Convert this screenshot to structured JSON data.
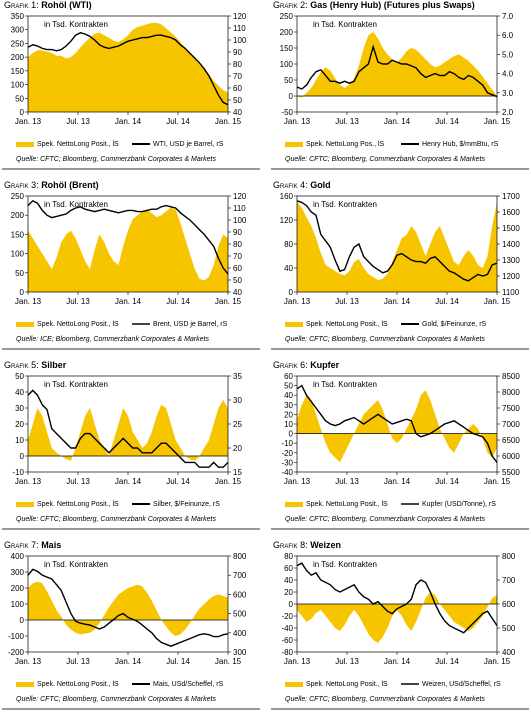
{
  "chart_data": [
    {
      "type": "area",
      "prefix": "Grafik 1: ",
      "name": "Rohöl (WTI)",
      "annotation": "in Tsd. Kontrakten",
      "x_labels": [
        "Jan. 13",
        "Jul. 13",
        "Jan. 14",
        "Jul. 14",
        "Jan. 15"
      ],
      "ylim_left": [
        0,
        350
      ],
      "yticks_left": [
        0,
        50,
        100,
        150,
        200,
        250,
        300,
        350
      ],
      "ylim_right": [
        40,
        120
      ],
      "yticks_right": [
        40,
        50,
        60,
        70,
        80,
        90,
        100,
        110,
        120
      ],
      "series": [
        {
          "name": "Spek. NettoLong Posit., lS",
          "axis": "left",
          "kind": "area",
          "values": [
            200,
            215,
            225,
            225,
            220,
            215,
            205,
            205,
            195,
            200,
            215,
            235,
            255,
            270,
            285,
            290,
            280,
            270,
            260,
            255,
            265,
            280,
            300,
            310,
            315,
            320,
            325,
            325,
            320,
            305,
            290,
            275,
            255,
            235,
            215,
            195,
            175,
            155,
            135,
            115,
            95,
            80,
            70
          ]
        },
        {
          "name": "WTI, USD je Barrel, rS",
          "axis": "right",
          "kind": "line",
          "values": [
            94,
            96,
            95,
            93,
            92,
            92,
            91,
            92,
            95,
            99,
            104,
            106,
            105,
            103,
            100,
            96,
            94,
            93,
            94,
            95,
            97,
            99,
            100,
            101,
            102,
            102,
            103,
            104,
            104,
            103,
            102,
            100,
            96,
            93,
            89,
            85,
            81,
            76,
            70,
            62,
            54,
            48,
            46
          ]
        }
      ],
      "source": "Quelle: CFTC; Bloomberg, Commerzbank Corporates & Markets"
    },
    {
      "type": "area",
      "prefix": "Grafik 2: ",
      "name": "Gas (Henry Hub) (Futures plus Swaps)",
      "annotation": "in Tsd. Kontrakten",
      "x_labels": [
        "Jan. 13",
        "Jul. 13",
        "Jan. 14",
        "Jul. 14",
        "Jan. 15"
      ],
      "ylim_left": [
        -50,
        250
      ],
      "yticks_left": [
        -50,
        0,
        50,
        100,
        150,
        200,
        250
      ],
      "ylim_right": [
        2,
        7
      ],
      "yticks_right": [
        2.0,
        3.0,
        4.0,
        5.0,
        6.0,
        7.0
      ],
      "series": [
        {
          "name": "Spek. NettoLong Pos., lS",
          "axis": "left",
          "kind": "area",
          "values": [
            0,
            -5,
            10,
            25,
            50,
            75,
            90,
            80,
            55,
            35,
            25,
            35,
            55,
            95,
            150,
            190,
            200,
            180,
            150,
            130,
            115,
            105,
            120,
            140,
            150,
            145,
            130,
            115,
            100,
            90,
            95,
            105,
            115,
            125,
            130,
            120,
            110,
            95,
            80,
            60,
            40,
            20,
            0
          ]
        },
        {
          "name": "Henry Hub, $/mmBtu, rS",
          "axis": "right",
          "kind": "line",
          "values": [
            3.3,
            3.2,
            3.4,
            3.8,
            4.1,
            4.2,
            3.9,
            3.6,
            3.6,
            3.5,
            3.6,
            3.5,
            3.6,
            4.1,
            4.3,
            4.5,
            5.4,
            4.6,
            4.5,
            4.5,
            4.7,
            4.6,
            4.5,
            4.5,
            4.4,
            4.3,
            4.0,
            3.8,
            3.9,
            4.0,
            3.9,
            3.9,
            4.1,
            4.0,
            3.8,
            3.7,
            3.9,
            3.8,
            3.6,
            3.4,
            3.0,
            2.9,
            2.8
          ]
        }
      ],
      "source": "Quelle: CFTC; Bloomberg, Commerzbank Corporates & Markets"
    },
    {
      "type": "area",
      "prefix": "Grafik 3: ",
      "name": "Rohöl (Brent)",
      "annotation": "in Tsd. Kontrakten",
      "x_labels": [
        "Jan. 13",
        "Jul. 13",
        "Jan. 14",
        "Jul. 14",
        "Jan. 15"
      ],
      "ylim_left": [
        0,
        250
      ],
      "yticks_left": [
        0,
        50,
        100,
        150,
        200,
        250
      ],
      "ylim_right": [
        40,
        120
      ],
      "yticks_right": [
        40,
        50,
        60,
        70,
        80,
        90,
        100,
        110,
        120
      ],
      "series": [
        {
          "name": "Spek. NettoLong Posit., lS",
          "axis": "left",
          "kind": "area",
          "values": [
            160,
            140,
            120,
            100,
            80,
            60,
            90,
            130,
            150,
            160,
            140,
            110,
            80,
            60,
            110,
            150,
            130,
            100,
            80,
            70,
            120,
            160,
            190,
            200,
            210,
            215,
            205,
            195,
            200,
            210,
            220,
            215,
            180,
            140,
            100,
            60,
            35,
            30,
            40,
            70,
            120,
            150,
            140
          ]
        },
        {
          "name": "Brent, USD je Barrel, rS",
          "axis": "right",
          "kind": "line",
          "values": [
            112,
            116,
            114,
            108,
            104,
            102,
            103,
            104,
            105,
            108,
            110,
            111,
            109,
            108,
            107,
            108,
            109,
            108,
            107,
            106,
            107,
            108,
            108,
            107,
            107,
            108,
            109,
            109,
            111,
            112,
            111,
            110,
            106,
            103,
            100,
            96,
            92,
            88,
            83,
            78,
            68,
            60,
            55
          ]
        }
      ],
      "source": "Quelle: ICE; Bloomberg, Commerzbank Corporates & Markets"
    },
    {
      "type": "area",
      "prefix": "Grafik 4: ",
      "name": "Gold",
      "annotation": "in Tsd. Kontrakten",
      "x_labels": [
        "Jan. 13",
        "Jul. 13",
        "Jan. 14",
        "Jul. 14",
        "Jan. 15"
      ],
      "ylim_left": [
        0,
        160
      ],
      "yticks_left": [
        0,
        40,
        80,
        120,
        160
      ],
      "ylim_right": [
        1100,
        1700
      ],
      "yticks_right": [
        1100,
        1200,
        1300,
        1400,
        1500,
        1600,
        1700
      ],
      "series": [
        {
          "name": "Spek. NettoLong Posit., lS",
          "axis": "left",
          "kind": "area",
          "values": [
            150,
            140,
            125,
            110,
            90,
            65,
            45,
            40,
            35,
            30,
            28,
            35,
            50,
            55,
            40,
            30,
            25,
            20,
            22,
            30,
            50,
            70,
            90,
            95,
            110,
            100,
            80,
            60,
            80,
            100,
            110,
            90,
            70,
            50,
            45,
            60,
            70,
            60,
            45,
            40,
            60,
            110,
            150
          ]
        },
        {
          "name": "Gold, $/Feinunze, rS",
          "axis": "right",
          "kind": "line",
          "values": [
            1670,
            1660,
            1640,
            1600,
            1580,
            1460,
            1420,
            1380,
            1300,
            1230,
            1240,
            1320,
            1380,
            1400,
            1320,
            1290,
            1260,
            1240,
            1220,
            1230,
            1270,
            1330,
            1340,
            1320,
            1300,
            1290,
            1290,
            1280,
            1310,
            1320,
            1290,
            1260,
            1230,
            1220,
            1200,
            1180,
            1170,
            1190,
            1210,
            1200,
            1210,
            1270,
            1280
          ]
        }
      ],
      "source": "Quelle: CFTC; Bloomberg, Commerzbank Corporates & Markets"
    },
    {
      "type": "area",
      "prefix": "Grafik 5: ",
      "name": "Silber",
      "annotation": "in Tsd. Kontrakten",
      "x_labels": [
        "Jan. 13",
        "Jul. 13",
        "Jan. 14",
        "Jul. 14",
        "Jan. 15"
      ],
      "ylim_left": [
        -10,
        50
      ],
      "yticks_left": [
        -10,
        0,
        10,
        20,
        30,
        40,
        50
      ],
      "ylim_right": [
        15,
        35
      ],
      "yticks_right": [
        15,
        20,
        25,
        30,
        35
      ],
      "series": [
        {
          "name": "Spek. NettoLong Posit., lS",
          "axis": "left",
          "kind": "area",
          "values": [
            10,
            20,
            30,
            25,
            15,
            5,
            2,
            0,
            -2,
            -3,
            5,
            15,
            25,
            30,
            20,
            10,
            5,
            0,
            10,
            20,
            30,
            25,
            15,
            10,
            5,
            8,
            15,
            25,
            32,
            30,
            20,
            10,
            5,
            0,
            -2,
            -3,
            0,
            5,
            10,
            20,
            30,
            35,
            30
          ]
        },
        {
          "name": "Silber, $/Feinunze, rS",
          "axis": "right",
          "kind": "line",
          "values": [
            31,
            32,
            31,
            29,
            28,
            24,
            23,
            22,
            21,
            20,
            20,
            22,
            23,
            23,
            22,
            21,
            20,
            19,
            20,
            21,
            22,
            21,
            20,
            20,
            19,
            19,
            19,
            20,
            21,
            21,
            20,
            19,
            18,
            17,
            17,
            17,
            16,
            16,
            16,
            17,
            16,
            16,
            17
          ]
        }
      ],
      "source": "Quelle: CFTC; Bloomberg, Commerzbank Corporates & Markets"
    },
    {
      "type": "area",
      "prefix": "Grafik 6: ",
      "name": "Kupfer",
      "annotation": "in Tsd. Kontrakten",
      "x_labels": [
        "Jan. 13",
        "Jul. 13",
        "Jan. 14",
        "Jul. 14",
        "Jan. 15"
      ],
      "ylim_left": [
        -40,
        60
      ],
      "yticks_left": [
        -40,
        -30,
        -20,
        -10,
        0,
        10,
        20,
        30,
        40,
        50,
        60
      ],
      "ylim_right": [
        5500,
        8500
      ],
      "yticks_right": [
        5500,
        6000,
        6500,
        7000,
        7500,
        8000,
        8500
      ],
      "series": [
        {
          "name": "Spek. NettoLong Posit., lS",
          "axis": "left",
          "kind": "area",
          "values": [
            15,
            30,
            40,
            35,
            20,
            5,
            -10,
            -20,
            -25,
            -30,
            -20,
            -10,
            0,
            10,
            20,
            25,
            30,
            35,
            25,
            10,
            -5,
            -10,
            -5,
            5,
            15,
            25,
            40,
            45,
            35,
            20,
            5,
            -5,
            -15,
            -20,
            -10,
            0,
            5,
            10,
            5,
            -5,
            -20,
            -25,
            -15
          ]
        },
        {
          "name": "Kupfer (USD/Tonne), rS",
          "axis": "right",
          "kind": "line",
          "values": [
            8100,
            8200,
            7900,
            7700,
            7500,
            7300,
            7100,
            7000,
            6950,
            7000,
            7100,
            7150,
            7200,
            7100,
            7000,
            7100,
            7200,
            7300,
            7200,
            7100,
            7000,
            7050,
            7100,
            7150,
            7100,
            6700,
            6600,
            6650,
            6700,
            6800,
            6900,
            7000,
            7050,
            7100,
            7000,
            6900,
            6800,
            6700,
            6650,
            6600,
            6400,
            6000,
            5800
          ]
        }
      ],
      "source": "Quelle: CFTC; Bloomberg, Commerzbank Corporates & Markets"
    },
    {
      "type": "area",
      "prefix": "Grafik 7: ",
      "name": "Mais",
      "annotation": "in Tsd. Kontrakten",
      "x_labels": [
        "Jan. 13",
        "Jul. 13",
        "Jan. 14",
        "Jul. 14",
        "Jan. 15"
      ],
      "ylim_left": [
        -200,
        400
      ],
      "yticks_left": [
        -200,
        -100,
        0,
        100,
        200,
        300,
        400
      ],
      "ylim_right": [
        300,
        800
      ],
      "yticks_right": [
        300,
        400,
        500,
        600,
        700,
        800
      ],
      "series": [
        {
          "name": "Spek. NettoLong Posit., lS",
          "axis": "left",
          "kind": "area",
          "values": [
            200,
            230,
            240,
            230,
            180,
            120,
            60,
            20,
            -30,
            -60,
            -80,
            -90,
            -85,
            -80,
            -60,
            -20,
            30,
            80,
            120,
            160,
            180,
            200,
            210,
            220,
            210,
            170,
            120,
            60,
            0,
            -40,
            -80,
            -100,
            -90,
            -60,
            -20,
            30,
            70,
            100,
            130,
            150,
            160,
            150,
            140
          ]
        },
        {
          "name": "Mais, USd/Scheffel, rS",
          "axis": "right",
          "kind": "line",
          "values": [
            700,
            730,
            720,
            700,
            690,
            680,
            650,
            620,
            560,
            500,
            460,
            450,
            445,
            440,
            430,
            420,
            430,
            450,
            470,
            490,
            500,
            480,
            470,
            460,
            440,
            420,
            400,
            370,
            350,
            340,
            330,
            340,
            350,
            360,
            370,
            380,
            390,
            395,
            390,
            380,
            380,
            390,
            395
          ]
        }
      ],
      "source": "Quelle: CFTC; Bloomberg, Commerzbank Corporates & Markets"
    },
    {
      "type": "area",
      "prefix": "Grafik 8: ",
      "name": "Weizen",
      "annotation": "in Tsd. Kontrakten",
      "x_labels": [
        "Jan. 13",
        "Jul. 13",
        "Jan. 14",
        "Jul. 14",
        "Jan. 15"
      ],
      "ylim_left": [
        -80,
        80
      ],
      "yticks_left": [
        -80,
        -60,
        -40,
        -20,
        0,
        20,
        40,
        60,
        80
      ],
      "ylim_right": [
        400,
        800
      ],
      "yticks_right": [
        400,
        500,
        600,
        700,
        800
      ],
      "series": [
        {
          "name": "Spek. NettoLong Posit., lS",
          "axis": "left",
          "kind": "area",
          "values": [
            -10,
            -20,
            -30,
            -25,
            -15,
            -10,
            -20,
            -30,
            -40,
            -45,
            -35,
            -20,
            -10,
            -20,
            -35,
            -50,
            -60,
            -65,
            -55,
            -40,
            -20,
            -10,
            -20,
            -35,
            -45,
            -30,
            -10,
            10,
            20,
            15,
            0,
            -10,
            -20,
            -30,
            -35,
            -40,
            -45,
            -40,
            -30,
            -20,
            -5,
            10,
            15
          ]
        },
        {
          "name": "Weizen, USd/Scheffel, rS",
          "axis": "right",
          "kind": "line",
          "values": [
            760,
            770,
            740,
            720,
            730,
            700,
            690,
            680,
            660,
            650,
            660,
            670,
            680,
            650,
            630,
            620,
            600,
            610,
            590,
            570,
            560,
            580,
            590,
            600,
            620,
            680,
            700,
            690,
            650,
            600,
            560,
            530,
            510,
            500,
            490,
            480,
            500,
            520,
            540,
            560,
            570,
            540,
            510
          ]
        }
      ],
      "source": "Quelle: CFTC; Bloomberg, Commerzbank Corporates & Markets"
    }
  ]
}
